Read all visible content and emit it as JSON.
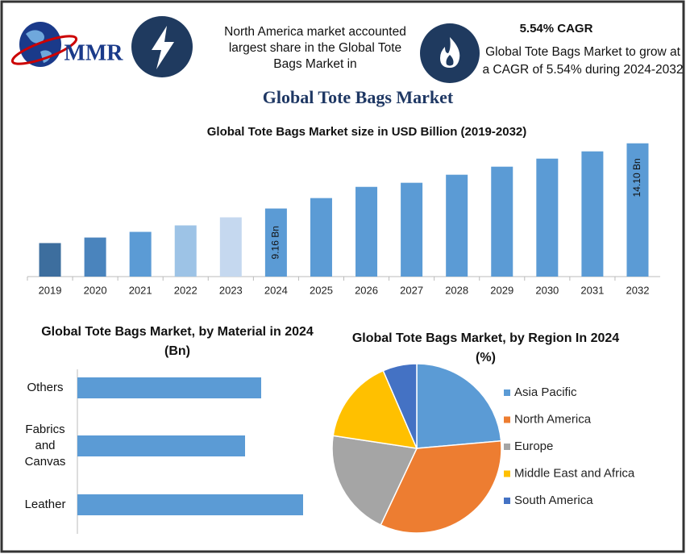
{
  "header": {
    "brand": "MMR",
    "share_text": "North America market accounted largest share in the Global Tote Bags Market in",
    "cagr_title": "5.54% CAGR",
    "cagr_text": "Global Tote Bags Market to grow at a CAGR of 5.54% during 2024-2032",
    "title": "Global Tote Bags Market"
  },
  "chart_data": [
    {
      "type": "bar",
      "title": "Global Tote Bags Market size in USD Billion (2019-2032)",
      "categories": [
        "2019",
        "2020",
        "2021",
        "2022",
        "2023",
        "2024",
        "2025",
        "2026",
        "2027",
        "2028",
        "2029",
        "2030",
        "2031",
        "2032"
      ],
      "values": [
        6.54,
        6.96,
        7.39,
        7.88,
        8.49,
        9.16,
        9.95,
        10.8,
        11.11,
        11.72,
        12.33,
        12.94,
        13.49,
        14.1
      ],
      "value_labels": [
        null,
        null,
        null,
        null,
        null,
        "9.16 Bn",
        null,
        null,
        null,
        null,
        null,
        null,
        null,
        "14.10 Bn"
      ],
      "colors": [
        "#3d6e9e",
        "#4a84bd",
        "#5b9bd5",
        "#9dc3e6",
        "#c5d8ef",
        "#5b9bd5",
        "#5b9bd5",
        "#5b9bd5",
        "#5b9bd5",
        "#5b9bd5",
        "#5b9bd5",
        "#5b9bd5",
        "#5b9bd5",
        "#5b9bd5"
      ],
      "ylim": [
        4,
        15
      ]
    },
    {
      "type": "hbar",
      "title": "Global Tote Bags Market, by Material in 2024 (Bn)",
      "categories": [
        "Others",
        "Fabrics and Canvas",
        "Leather"
      ],
      "values": [
        22.8,
        20.8,
        28.0
      ],
      "color": "#5b9bd5",
      "xlim": [
        0,
        35
      ]
    },
    {
      "type": "pie",
      "title": "Global Tote Bags Market, by Region In 2024 (%)",
      "categories": [
        "Asia Pacific",
        "North America",
        "Europe",
        "Middle East and Africa",
        "South America"
      ],
      "values": [
        23.6,
        33.4,
        20.4,
        16.1,
        6.5
      ],
      "colors": [
        "#5b9bd5",
        "#ed7d31",
        "#a5a5a5",
        "#ffc000",
        "#4472c4"
      ],
      "legend": "right"
    }
  ]
}
